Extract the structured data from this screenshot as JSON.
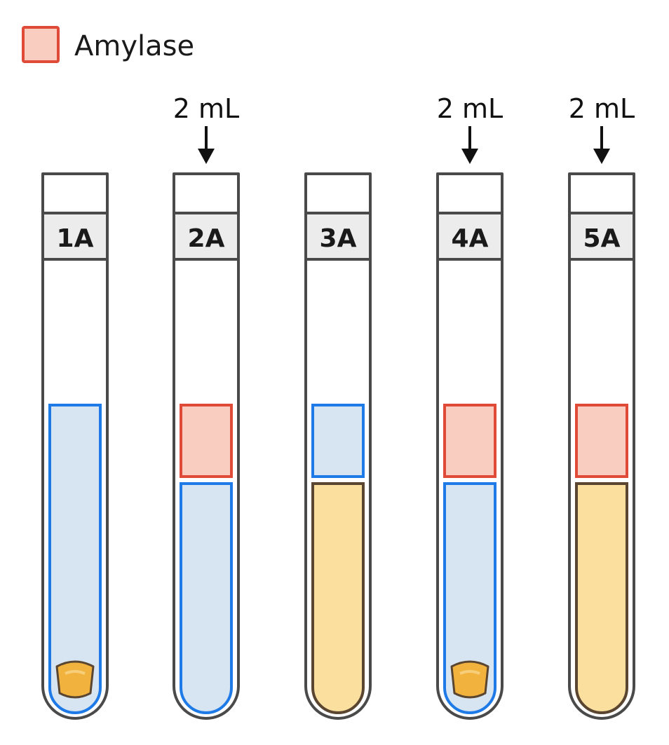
{
  "legend": {
    "label": "Amylase",
    "swatch_fill": "#f9cdbf",
    "swatch_stroke": "#e04a38"
  },
  "colors": {
    "tube_stroke": "#4a4a4a",
    "label_fill": "#ececec",
    "water_fill": "#d7e4f2",
    "water_stroke": "#1e7ae6",
    "amylase_fill": "#f9cdbf",
    "amylase_stroke": "#e04a38",
    "starch_fill": "#fbdf9f",
    "starch_stroke": "#5a4630",
    "pellet_fill": "#f2b23e",
    "pellet_stroke": "#5a4630"
  },
  "tubes": [
    {
      "label": "1A",
      "volume_label": "",
      "amylase": false,
      "bottom_liquid": "water",
      "top_liquid": "water",
      "has_pellet": true
    },
    {
      "label": "2A",
      "volume_label": "2 mL",
      "amylase": true,
      "bottom_liquid": "water",
      "top_liquid": "amylase",
      "has_pellet": false
    },
    {
      "label": "3A",
      "volume_label": "",
      "amylase": false,
      "bottom_liquid": "starch",
      "top_liquid": "water",
      "has_pellet": false
    },
    {
      "label": "4A",
      "volume_label": "2 mL",
      "amylase": true,
      "bottom_liquid": "water",
      "top_liquid": "amylase",
      "has_pellet": true
    },
    {
      "label": "5A",
      "volume_label": "2 mL",
      "amylase": true,
      "bottom_liquid": "starch",
      "top_liquid": "amylase",
      "has_pellet": false
    }
  ]
}
